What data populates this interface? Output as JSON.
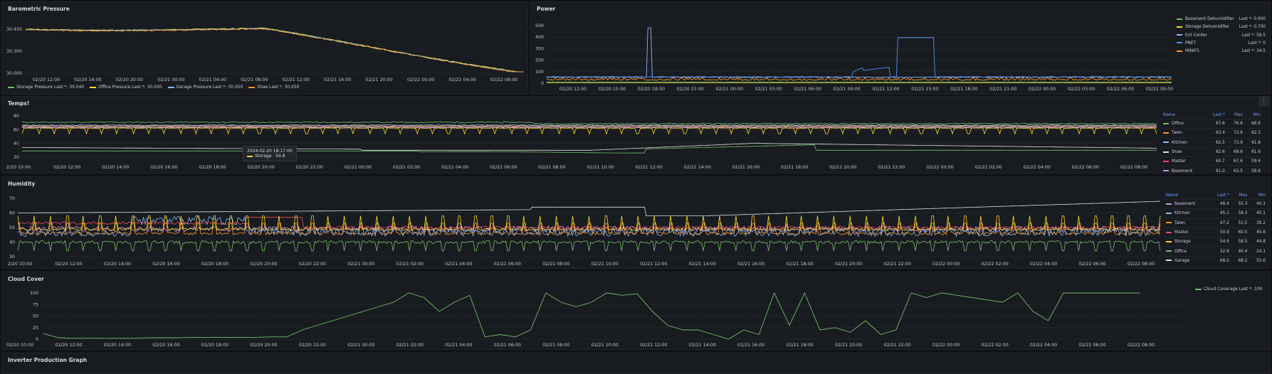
{
  "colors": {
    "green": "#73bf69",
    "yellow": "#fade2a",
    "blue": "#8ab8ff",
    "orange": "#ff9830",
    "red": "#f2495c",
    "purple": "#ca95e5",
    "white": "#e0e0e0",
    "darkblue": "#5794f2"
  },
  "panels": {
    "barometric": {
      "title": "Barometric Pressure",
      "yticks": [
        "30.450",
        "30.300",
        "30.000"
      ],
      "xticks": [
        "02/20 12:00",
        "02/20 16:00",
        "02/20 20:00",
        "02/21 00:00",
        "02/21 04:00",
        "02/21 08:00",
        "02/21 12:00",
        "02/21 16:00",
        "02/21 20:00",
        "02/22 00:00",
        "02/22 04:00",
        "02/22 08:00"
      ],
      "legend": [
        {
          "label": "Storage Pressure",
          "last": "Last *: 30.040",
          "color": "#73bf69"
        },
        {
          "label": "Office Pressure",
          "last": "Last *: 30.030",
          "color": "#fade2a"
        },
        {
          "label": "Garage Pressure",
          "last": "Last *: 30.050",
          "color": "#8ab8ff"
        },
        {
          "label": "Shae",
          "last": "Last *: 30.050",
          "color": "#ff9830"
        }
      ]
    },
    "power": {
      "title": "Power",
      "yticks": [
        "500",
        "400",
        "300",
        "200",
        "100",
        "0"
      ],
      "xticks": [
        "02/20 12:00",
        "02/20 15:00",
        "02/20 18:00",
        "02/20 21:00",
        "02/21 00:00",
        "02/21 03:00",
        "02/21 06:00",
        "02/21 09:00",
        "02/21 12:00",
        "02/21 15:00",
        "02/21 18:00",
        "02/21 21:00",
        "02/22 00:00",
        "02/22 03:00",
        "02/22 06:00",
        "02/22 09:00"
      ],
      "legend": [
        {
          "label": "Basement Dehumidifier",
          "last": "Last *: 0.900",
          "color": "#73bf69"
        },
        {
          "label": "Storage Dehumidifier",
          "last": "Last *: 0.700",
          "color": "#fade2a"
        },
        {
          "label": "Ent Center",
          "last": "Last *: 58.5",
          "color": "#8ab8ff"
        },
        {
          "label": "PNET",
          "last": "Last *: 0",
          "color": "#5794f2"
        },
        {
          "label": "MINIFS",
          "last": "Last *: 34.5",
          "color": "#ff9830"
        }
      ]
    },
    "temps": {
      "title": "Temps!",
      "yticks": [
        "80",
        "60",
        "40",
        "20"
      ],
      "xticks": [
        "2/20 10:00",
        "02/20 12:00",
        "02/20 14:00",
        "02/20 16:00",
        "02/20 18:00",
        "02/20 20:00",
        "02/20 22:00",
        "02/21 00:00",
        "02/21 02:00",
        "02/21 04:00",
        "02/21 06:00",
        "02/21 08:00",
        "02/21 10:00",
        "02/21 12:00",
        "02/21 14:00",
        "02/21 16:00",
        "02/21 18:00",
        "02/21 20:00",
        "02/21 22:00",
        "02/22 00:00",
        "02/22 02:00",
        "02/22 04:00",
        "02/22 06:00",
        "02/22 08:00"
      ],
      "tooltip": {
        "time": "2024-02-20 18:17:00",
        "series": "Storage",
        "value": "54.8"
      },
      "menu": "⋮",
      "table_headers": [
        "Name",
        "Last *",
        "Max",
        "Min"
      ],
      "rows": [
        {
          "name": "Office",
          "last": "67.6",
          "max": "76.6",
          "min": "66.6",
          "color": "#73bf69"
        },
        {
          "name": "Talen",
          "last": "63.4",
          "max": "72.6",
          "min": "62.3",
          "color": "#ff9830"
        },
        {
          "name": "Kitchen",
          "last": "62.5",
          "max": "73.9",
          "min": "61.8",
          "color": "#8ab8ff"
        },
        {
          "name": "Shae",
          "last": "62.6",
          "max": "68.8",
          "min": "61.6",
          "color": "#e0e0e0"
        },
        {
          "name": "Master",
          "last": "60.7",
          "max": "67.6",
          "min": "59.4",
          "color": "#f2495c"
        },
        {
          "name": "Basement",
          "last": "61.0",
          "max": "62.5",
          "min": "58.6",
          "color": "#ca95e5"
        }
      ]
    },
    "humidity": {
      "title": "Humidity",
      "yticks": [
        "70",
        "60",
        "50",
        "40",
        "30"
      ],
      "xticks": [
        "2/20 10:00",
        "02/20 12:00",
        "02/20 14:00",
        "02/20 16:00",
        "02/20 18:00",
        "02/20 20:00",
        "02/20 22:00",
        "02/21 00:00",
        "02/21 02:00",
        "02/21 04:00",
        "02/21 06:00",
        "02/21 08:00",
        "02/21 10:00",
        "02/21 12:00",
        "02/21 14:00",
        "02/21 16:00",
        "02/21 18:00",
        "02/21 20:00",
        "02/21 22:00",
        "02/22 00:00",
        "02/22 02:00",
        "02/22 04:00",
        "02/22 06:00",
        "02/22 08:00"
      ],
      "table_headers": [
        "Name",
        "Last *",
        "Max",
        "Min"
      ],
      "rows": [
        {
          "name": "Basement",
          "last": "48.4",
          "max": "55.3",
          "min": "40.1",
          "color": "#ca95e5"
        },
        {
          "name": "Kitchen",
          "last": "45.1",
          "max": "58.3",
          "min": "40.1",
          "color": "#8ab8ff"
        },
        {
          "name": "Talen",
          "last": "47.2",
          "max": "51.5",
          "min": "38.2",
          "color": "#ff9830"
        },
        {
          "name": "Master",
          "last": "50.9",
          "max": "60.5",
          "min": "45.6",
          "color": "#f2495c"
        },
        {
          "name": "Storage",
          "last": "54.6",
          "max": "58.5",
          "min": "44.8",
          "color": "#fade2a"
        },
        {
          "name": "Office",
          "last": "32.9",
          "max": "40.4",
          "min": "24.1",
          "color": "#73bf69"
        },
        {
          "name": "Garage",
          "last": "68.2",
          "max": "68.2",
          "min": "55.6",
          "color": "#e0e0e0"
        }
      ]
    },
    "cloud": {
      "title": "Cloud Cover",
      "yticks": [
        "100",
        "75",
        "50",
        "25",
        "0"
      ],
      "xticks": [
        "02/20 10:00",
        "02/20 12:00",
        "02/20 14:00",
        "02/20 16:00",
        "02/20 18:00",
        "02/20 20:00",
        "02/20 22:00",
        "02/21 00:00",
        "02/21 02:00",
        "02/21 04:00",
        "02/21 06:00",
        "02/21 08:00",
        "02/21 10:00",
        "02/21 12:00",
        "02/21 14:00",
        "02/21 16:00",
        "02/21 18:00",
        "02/21 20:00",
        "02/21 22:00",
        "02/22 00:00",
        "02/22 02:00",
        "02/22 04:00",
        "02/22 06:00",
        "02/22 08:00"
      ],
      "legend": [
        {
          "label": "Cloud Coverage",
          "last": "Last *: 100",
          "color": "#73bf69"
        }
      ],
      "series": [
        12,
        3,
        2,
        2,
        2,
        2,
        2,
        3,
        3,
        3,
        4,
        4,
        4,
        4,
        4,
        5,
        5,
        20,
        30,
        40,
        50,
        60,
        70,
        80,
        100,
        90,
        60,
        80,
        95,
        5,
        10,
        5,
        20,
        100,
        80,
        70,
        80,
        100,
        95,
        98,
        60,
        30,
        20,
        20,
        10,
        0,
        20,
        10,
        100,
        30,
        100,
        20,
        25,
        15,
        40,
        10,
        20,
        100,
        90,
        100,
        95,
        90,
        85,
        80,
        100,
        60,
        40,
        100,
        100,
        100,
        100,
        100,
        100
      ],
      "series_note": "cloud coverage percent over time"
    },
    "inverter": {
      "title": "Inverter Production Graph"
    }
  }
}
